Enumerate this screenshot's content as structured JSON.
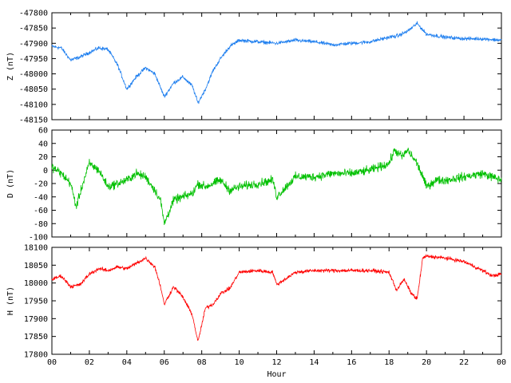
{
  "chart_data": [
    {
      "type": "line",
      "ylabel": "Z (nT)",
      "color": "#1f7fef",
      "ylim": [
        -48150,
        -47800
      ],
      "yticks": [
        -47800,
        -47850,
        -47900,
        -47950,
        -48000,
        -48050,
        -48100,
        -48150
      ],
      "series": [
        {
          "x": [
            0,
            0.5,
            1,
            1.5,
            2,
            2.5,
            3,
            3.5,
            4,
            4.5,
            5,
            5.5,
            6,
            6.5,
            7,
            7.5,
            7.8,
            8.2,
            8.6,
            9,
            9.5,
            10,
            11,
            12,
            13,
            14,
            15,
            16,
            17,
            18,
            18.5,
            19,
            19.5,
            20,
            21,
            22,
            23,
            24
          ],
          "values": [
            -47910,
            -47915,
            -47955,
            -47945,
            -47930,
            -47915,
            -47920,
            -47970,
            -48050,
            -48010,
            -47980,
            -48000,
            -48075,
            -48030,
            -48010,
            -48040,
            -48095,
            -48050,
            -47990,
            -47950,
            -47910,
            -47890,
            -47895,
            -47900,
            -47890,
            -47895,
            -47905,
            -47900,
            -47895,
            -47880,
            -47875,
            -47860,
            -47835,
            -47870,
            -47880,
            -47885,
            -47885,
            -47890
          ]
        }
      ]
    },
    {
      "type": "line",
      "ylabel": "D (nT)",
      "color": "#00c000",
      "ylim": [
        -100,
        60
      ],
      "yticks": [
        60,
        40,
        20,
        0,
        -20,
        -40,
        -60,
        -80,
        -100
      ],
      "series": [
        {
          "x": [
            0,
            0.5,
            1,
            1.3,
            1.6,
            2,
            2.5,
            3,
            3.5,
            4,
            4.5,
            5,
            5.5,
            5.8,
            6,
            6.5,
            7,
            7.5,
            7.8,
            8.2,
            9,
            9.5,
            10,
            11,
            11.8,
            12,
            13,
            14,
            15,
            16,
            17,
            18,
            18.3,
            18.7,
            19,
            19.5,
            19.8,
            20,
            20.5,
            21,
            22,
            23,
            24
          ],
          "values": [
            5,
            -5,
            -20,
            -55,
            -25,
            10,
            0,
            -25,
            -20,
            -15,
            -5,
            -10,
            -30,
            -45,
            -80,
            -45,
            -40,
            -35,
            -20,
            -25,
            -15,
            -30,
            -25,
            -20,
            -15,
            -40,
            -10,
            -10,
            -5,
            -5,
            0,
            10,
            30,
            20,
            30,
            10,
            -10,
            -25,
            -15,
            -15,
            -10,
            -5,
            -15
          ]
        }
      ]
    },
    {
      "type": "line",
      "ylabel": "H (nT)",
      "color": "#ff0000",
      "ylim": [
        17800,
        18100
      ],
      "yticks": [
        18100,
        18050,
        18000,
        17950,
        17900,
        17850,
        17800
      ],
      "xticks": [
        "00",
        "02",
        "04",
        "06",
        "08",
        "10",
        "12",
        "14",
        "16",
        "18",
        "20",
        "22",
        "00"
      ],
      "xlabel": "Hour",
      "xlim": [
        0,
        24
      ],
      "series": [
        {
          "x": [
            0,
            0.5,
            1,
            1.5,
            2,
            2.5,
            3,
            3.5,
            4,
            4.5,
            5,
            5.5,
            5.8,
            6,
            6.5,
            7,
            7.5,
            7.8,
            8.2,
            8.6,
            9,
            9.5,
            10,
            11,
            11.8,
            12,
            13,
            14,
            15,
            16,
            17,
            18,
            18.4,
            18.8,
            19.2,
            19.5,
            19.8,
            20,
            21,
            22,
            23,
            23.5,
            24
          ],
          "values": [
            18010,
            18020,
            17990,
            17995,
            18025,
            18040,
            18035,
            18045,
            18040,
            18055,
            18070,
            18045,
            17990,
            17940,
            17990,
            17960,
            17910,
            17835,
            17930,
            17940,
            17970,
            17985,
            18030,
            18035,
            18030,
            17995,
            18030,
            18035,
            18035,
            18035,
            18035,
            18030,
            17980,
            18010,
            17970,
            17955,
            18070,
            18075,
            18070,
            18060,
            18035,
            18020,
            18025
          ]
        }
      ]
    }
  ]
}
